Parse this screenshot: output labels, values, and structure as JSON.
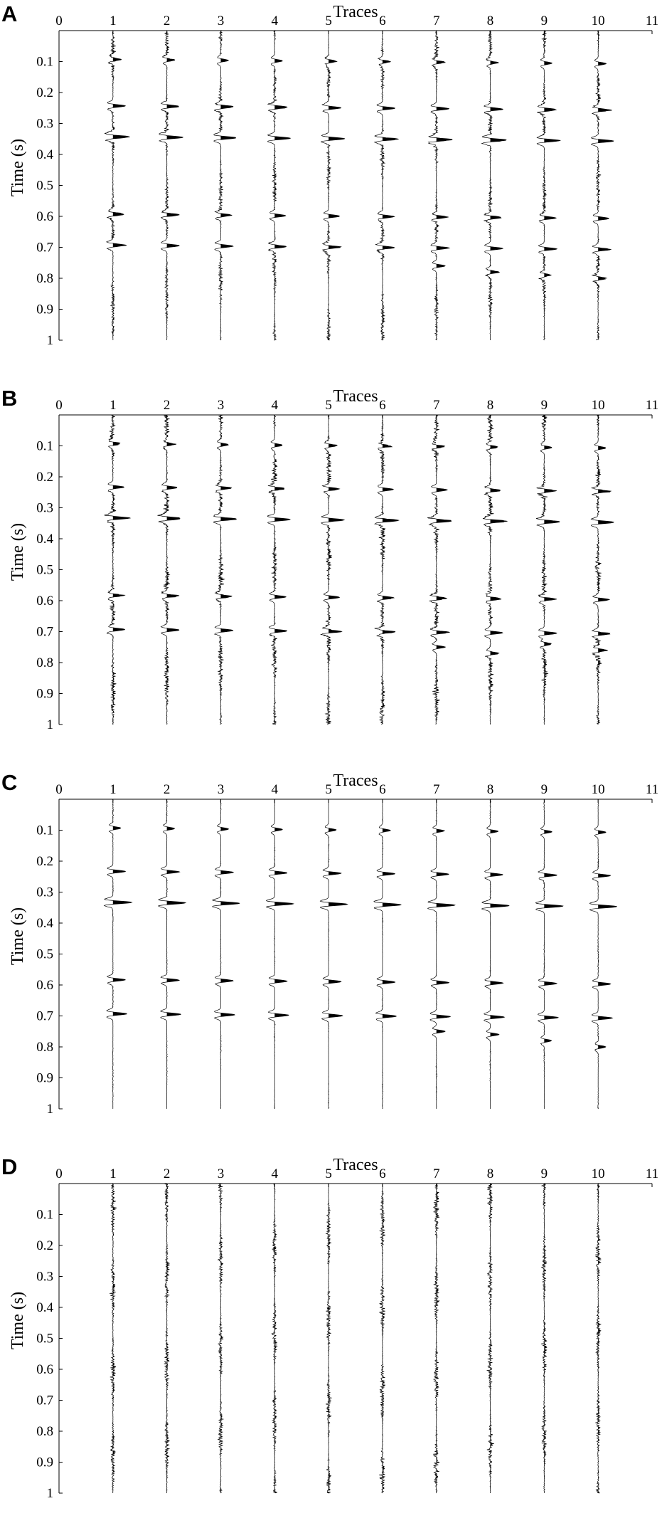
{
  "chart_data": [
    {
      "type": "seismic-wiggle",
      "panel_label": "A",
      "xlabel": "Traces",
      "ylabel": "Time (s)",
      "xlim": [
        0,
        11
      ],
      "ylim": [
        0,
        1
      ],
      "x_ticks": [
        "0",
        "1",
        "2",
        "3",
        "4",
        "5",
        "6",
        "7",
        "8",
        "9",
        "10",
        "11"
      ],
      "y_ticks": [
        "0.1",
        "0.2",
        "0.3",
        "0.4",
        "0.5",
        "0.6",
        "0.7",
        "0.8",
        "0.9",
        "1"
      ],
      "traces": [
        1,
        2,
        3,
        4,
        5,
        6,
        7,
        8,
        9,
        10
      ],
      "trace_amplitude": 0.2,
      "noise_level": 0.32,
      "reflection_amplitude": 0.2,
      "reflection_times_s": [
        0.1,
        0.25,
        0.35,
        0.6,
        0.7
      ],
      "reflection_strengths": [
        0.5,
        0.8,
        1.0,
        0.7,
        0.8
      ],
      "extra_events": [
        {
          "trace": 7,
          "time": 0.76,
          "strength": 0.6
        },
        {
          "trace": 8,
          "time": 0.78,
          "strength": 0.6
        },
        {
          "trace": 9,
          "time": 0.79,
          "strength": 0.5
        },
        {
          "trace": 10,
          "time": 0.8,
          "strength": 0.5
        }
      ]
    },
    {
      "type": "seismic-wiggle",
      "panel_label": "B",
      "xlabel": "Traces",
      "ylabel": "Time (s)",
      "xlim": [
        0,
        11
      ],
      "ylim": [
        0,
        1
      ],
      "x_ticks": [
        "0",
        "1",
        "2",
        "3",
        "4",
        "5",
        "6",
        "7",
        "8",
        "9",
        "10",
        "11"
      ],
      "y_ticks": [
        "0.1",
        "0.2",
        "0.3",
        "0.4",
        "0.5",
        "0.6",
        "0.7",
        "0.8",
        "0.9",
        "1"
      ],
      "traces": [
        1,
        2,
        3,
        4,
        5,
        6,
        7,
        8,
        9,
        10
      ],
      "trace_amplitude": 0.2,
      "noise_level": 0.42,
      "reflection_amplitude": 0.2,
      "reflection_times_s": [
        0.1,
        0.24,
        0.34,
        0.59,
        0.7
      ],
      "reflection_strengths": [
        0.5,
        0.7,
        1.0,
        0.7,
        0.8
      ],
      "extra_events": [
        {
          "trace": 7,
          "time": 0.75,
          "strength": 0.6
        },
        {
          "trace": 8,
          "time": 0.77,
          "strength": 0.6
        },
        {
          "trace": 9,
          "time": 0.74,
          "strength": 0.5
        },
        {
          "trace": 10,
          "time": 0.76,
          "strength": 0.5
        }
      ]
    },
    {
      "type": "seismic-wiggle",
      "panel_label": "C",
      "xlabel": "Traces",
      "ylabel": "Time (s)",
      "xlim": [
        0,
        11
      ],
      "ylim": [
        0,
        1
      ],
      "x_ticks": [
        "0",
        "1",
        "2",
        "3",
        "4",
        "5",
        "6",
        "7",
        "8",
        "9",
        "10",
        "11"
      ],
      "y_ticks": [
        "0.1",
        "0.2",
        "0.3",
        "0.4",
        "0.5",
        "0.6",
        "0.7",
        "0.8",
        "0.9",
        "1"
      ],
      "traces": [
        1,
        2,
        3,
        4,
        5,
        6,
        7,
        8,
        9,
        10
      ],
      "trace_amplitude": 0.2,
      "noise_level": 0.07,
      "reflection_amplitude": 0.2,
      "reflection_times_s": [
        0.1,
        0.24,
        0.34,
        0.59,
        0.7
      ],
      "reflection_strengths": [
        0.5,
        0.8,
        1.2,
        0.8,
        0.9
      ],
      "extra_events": [
        {
          "trace": 7,
          "time": 0.75,
          "strength": 0.6
        },
        {
          "trace": 8,
          "time": 0.76,
          "strength": 0.6
        },
        {
          "trace": 9,
          "time": 0.78,
          "strength": 0.5
        },
        {
          "trace": 10,
          "time": 0.8,
          "strength": 0.5
        }
      ]
    },
    {
      "type": "seismic-wiggle",
      "panel_label": "D",
      "xlabel": "Traces",
      "ylabel": "Time (s)",
      "xlim": [
        0,
        11
      ],
      "ylim": [
        0,
        1
      ],
      "x_ticks": [
        "0",
        "1",
        "2",
        "3",
        "4",
        "5",
        "6",
        "7",
        "8",
        "9",
        "10",
        "11"
      ],
      "y_ticks": [
        "0.1",
        "0.2",
        "0.3",
        "0.4",
        "0.5",
        "0.6",
        "0.7",
        "0.8",
        "0.9",
        "1"
      ],
      "traces": [
        1,
        2,
        3,
        4,
        5,
        6,
        7,
        8,
        9,
        10
      ],
      "trace_amplitude": 0.2,
      "noise_level": 0.38,
      "reflection_amplitude": 0,
      "reflection_times_s": [],
      "reflection_strengths": [],
      "extra_events": []
    }
  ]
}
